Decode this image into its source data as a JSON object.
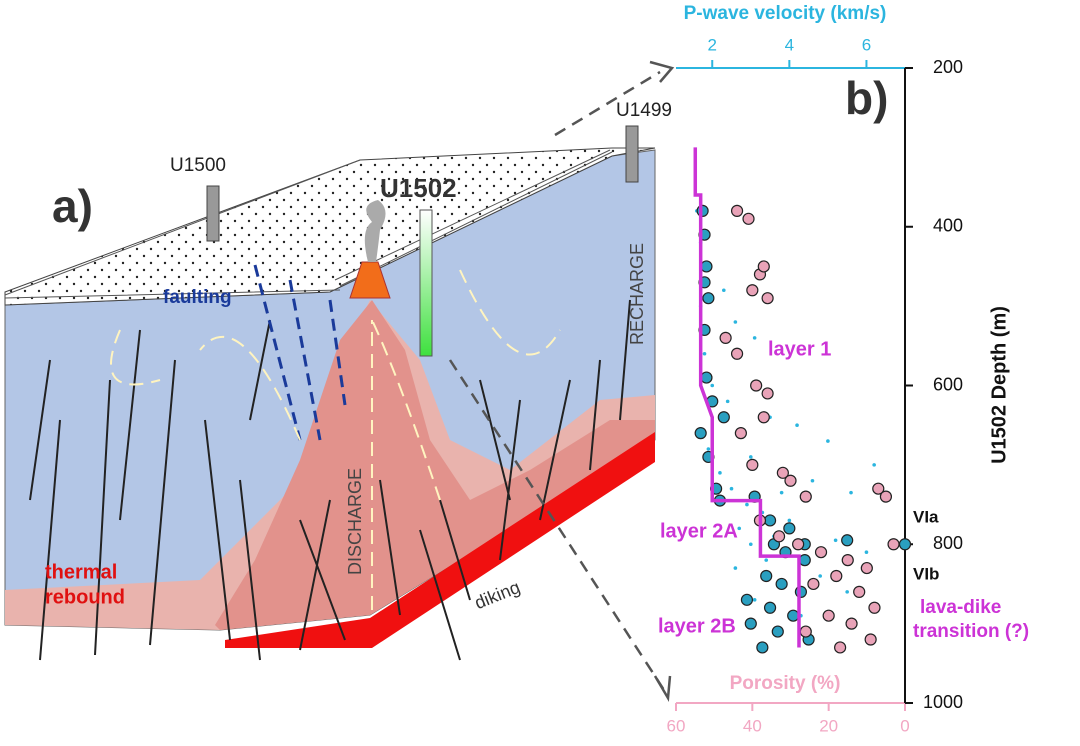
{
  "diagram": {
    "panel_label": "a)",
    "wells": [
      "U1500",
      "U1502",
      "U1499"
    ],
    "faulting": "faulting",
    "recharge": "RECHARGE",
    "discharge": "DISCHARGE",
    "thermal_rebound": [
      "thermal",
      "rebound"
    ],
    "diking": "diking"
  },
  "chart_data": {
    "type": "scatter",
    "panel_label": "b)",
    "xlabel": "P-wave velocity (km/s)",
    "x2label": "Porosity (%)",
    "ylabel": "U1502 Depth (m)",
    "xlim": [
      1.06,
      7.0
    ],
    "xticks": [
      2,
      4,
      6
    ],
    "xcolor": "#2bb5df",
    "x2lim": [
      60,
      0
    ],
    "x2ticks": [
      60,
      40,
      20,
      0
    ],
    "x2color": "#f2a7c3",
    "ylim": [
      1000,
      200
    ],
    "yticks": [
      200,
      400,
      600,
      800,
      1000
    ],
    "annotations": {
      "layer1": "layer 1",
      "layer2a": "layer 2A",
      "layer2b": "layer 2B",
      "via": "VIa",
      "vib": "VIb",
      "transition": [
        "lava-dike",
        "transition (?)"
      ]
    },
    "series": [
      {
        "type": "dots",
        "color": "#2bb5df",
        "values": [
          1.6,
          1.7,
          1.8,
          1.9,
          2.3,
          1.7,
          2.6,
          3.1,
          1.8,
          2.0,
          2.4,
          3.5,
          4.2,
          2.8,
          5.0,
          1.9,
          3.0,
          6.2,
          2.2,
          4.6,
          2.5,
          3.8,
          5.6,
          6.5,
          2.9,
          3.3,
          4.0,
          2.7,
          3.6,
          5.2,
          3.0,
          4.4,
          6.0,
          3.4,
          2.6,
          4.8,
          3.9,
          5.5,
          3.1,
          4.3
        ],
        "y": [
          380,
          420,
          450,
          470,
          480,
          500,
          520,
          540,
          560,
          600,
          620,
          640,
          650,
          660,
          670,
          680,
          690,
          700,
          710,
          720,
          730,
          735,
          735,
          740,
          750,
          760,
          770,
          780,
          790,
          795,
          800,
          805,
          810,
          820,
          830,
          840,
          850,
          860,
          870,
          890
        ]
      },
      {
        "type": "circles",
        "color": "#2a9fc0",
        "values": [
          1.75,
          1.8,
          1.85,
          1.8,
          1.9,
          1.8,
          1.85,
          2.0,
          2.3,
          1.7,
          1.9,
          2.1,
          3.1,
          2.2,
          3.5,
          4.0,
          3.6,
          3.9,
          4.4,
          3.4,
          3.8,
          4.3,
          2.9,
          3.5,
          4.1,
          3.0,
          3.7,
          4.5,
          3.3,
          4.4,
          5.5,
          7.0
        ],
        "y": [
          380,
          410,
          450,
          470,
          490,
          530,
          590,
          620,
          640,
          660,
          690,
          730,
          740,
          745,
          770,
          780,
          800,
          810,
          820,
          840,
          850,
          860,
          870,
          880,
          890,
          900,
          910,
          920,
          930,
          800,
          795,
          800
        ]
      },
      {
        "type": "circles",
        "color": "#e9a3b8",
        "axis": "x2",
        "values": [
          44,
          41,
          38,
          40,
          36,
          37,
          47,
          44,
          39,
          36,
          37,
          43,
          40,
          32,
          30,
          26,
          7,
          5,
          38,
          33,
          28,
          22,
          15,
          10,
          18,
          24,
          12,
          8,
          20,
          14,
          26,
          9,
          17,
          3
        ],
        "y": [
          380,
          390,
          460,
          480,
          490,
          450,
          540,
          560,
          600,
          610,
          640,
          660,
          700,
          710,
          720,
          740,
          730,
          740,
          770,
          790,
          800,
          810,
          820,
          830,
          840,
          850,
          860,
          880,
          890,
          900,
          910,
          920,
          930,
          800
        ]
      },
      {
        "type": "line",
        "color": "#cc33d6",
        "values": [
          1.56,
          1.56,
          1.7,
          1.7,
          2.0,
          2.0,
          3.25,
          3.25,
          4.25,
          4.25
        ],
        "y": [
          300,
          360,
          360,
          600,
          640,
          745,
          745,
          815,
          815,
          930
        ]
      }
    ]
  }
}
